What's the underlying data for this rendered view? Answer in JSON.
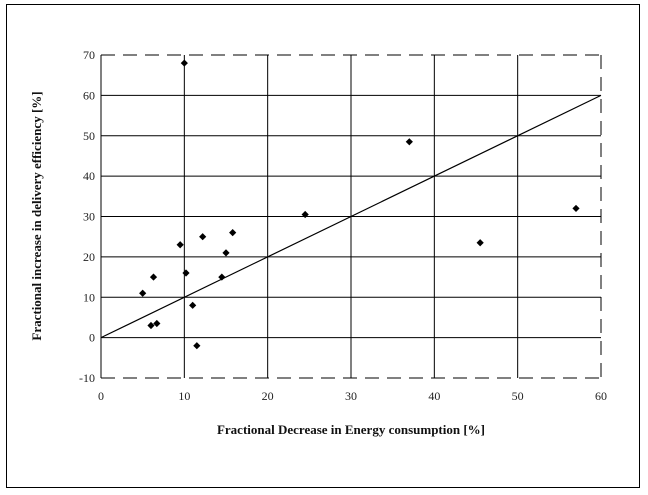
{
  "chart_data": {
    "type": "scatter",
    "title": "",
    "xlabel": "Fractional Decrease in Energy consumption [%]",
    "ylabel": "Fractional increase in delivery efficiency [%]",
    "xlim": [
      0,
      60
    ],
    "ylim": [
      -10,
      70
    ],
    "x_ticks": [
      "0",
      "10",
      "20",
      "30",
      "40",
      "50",
      "60"
    ],
    "y_ticks": [
      "-10",
      "0",
      "10",
      "20",
      "30",
      "40",
      "50",
      "60",
      "70"
    ],
    "grid": true,
    "legend": "none",
    "series": [
      {
        "points": [
          {
            "x": 5.0,
            "y": 11
          },
          {
            "x": 6.0,
            "y": 3
          },
          {
            "x": 6.3,
            "y": 15
          },
          {
            "x": 6.7,
            "y": 3.5
          },
          {
            "x": 9.5,
            "y": 23
          },
          {
            "x": 10.0,
            "y": 68
          },
          {
            "x": 10.2,
            "y": 16
          },
          {
            "x": 11.0,
            "y": 8
          },
          {
            "x": 11.5,
            "y": -2
          },
          {
            "x": 12.2,
            "y": 25
          },
          {
            "x": 14.5,
            "y": 15
          },
          {
            "x": 15.0,
            "y": 21
          },
          {
            "x": 15.8,
            "y": 26
          },
          {
            "x": 24.5,
            "y": 30.5
          },
          {
            "x": 37.0,
            "y": 48.5
          },
          {
            "x": 45.5,
            "y": 23.5
          },
          {
            "x": 57.0,
            "y": 32
          }
        ]
      }
    ],
    "trendline": {
      "x": [
        0,
        60
      ],
      "y": [
        0,
        60
      ]
    },
    "colors": {
      "marker": "#000000",
      "line": "#000000",
      "grid": "#000000"
    }
  }
}
